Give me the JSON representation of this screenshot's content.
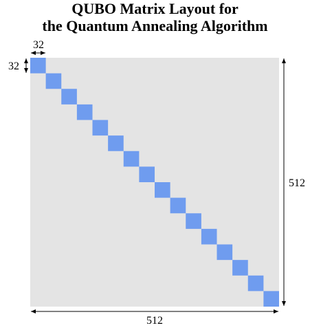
{
  "title": {
    "line1": "QUBO Matrix Layout for",
    "line2": "the Quantum Annealing Algorithm"
  },
  "matrix": {
    "size": 512,
    "block_size": 32,
    "block_count": 16,
    "background_color": "#e4e4e4",
    "block_color": "#6f9cef"
  },
  "labels": {
    "block_width": "32",
    "block_height": "32",
    "matrix_width": "512",
    "matrix_height": "512"
  }
}
